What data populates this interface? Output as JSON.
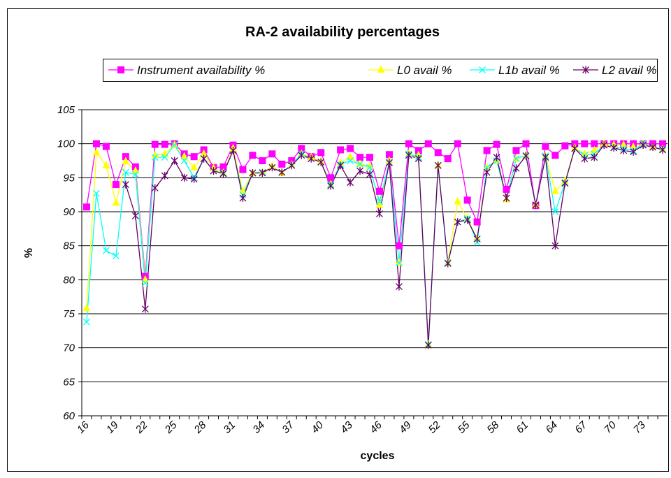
{
  "chart_data": {
    "type": "line",
    "title": "RA-2 availability percentages",
    "x_label": "cycles",
    "y_label": "%",
    "categories": [
      "16",
      null,
      null,
      "19",
      null,
      null,
      "22",
      null,
      null,
      "25",
      null,
      null,
      "28",
      null,
      null,
      "31",
      null,
      null,
      "34",
      null,
      null,
      "37",
      null,
      null,
      "40",
      null,
      null,
      "43",
      null,
      null,
      "46",
      null,
      null,
      "49",
      null,
      null,
      "52",
      null,
      null,
      "55",
      null,
      null,
      "58",
      null,
      null,
      "61",
      null,
      null,
      "64",
      null,
      null,
      "67",
      null,
      null,
      "70",
      null,
      null,
      "73",
      null,
      null
    ],
    "ylim": [
      60,
      105
    ],
    "yticks": [
      60,
      65,
      70,
      75,
      80,
      85,
      90,
      95,
      100,
      105
    ],
    "grid": true,
    "series": [
      {
        "name": "Instrument availability %",
        "color": "#ff00ff",
        "marker": "square",
        "values": [
          90.7,
          100,
          99.6,
          94,
          98.1,
          96.6,
          80.5,
          99.9,
          99.9,
          100,
          98.5,
          98.1,
          99.1,
          96.5,
          96.6,
          99.8,
          96.2,
          98.3,
          97.5,
          98.5,
          97,
          97.5,
          99.3,
          98.1,
          98.7,
          95,
          99.1,
          99.3,
          98,
          98,
          93,
          98.4,
          85,
          100,
          99,
          100,
          98.7,
          97.8,
          100,
          91.7,
          88.5,
          99,
          99.9,
          93.3,
          99,
          100,
          90.9,
          99.6,
          98.3,
          99.7,
          100,
          100,
          100,
          100,
          100,
          100,
          100,
          100,
          100,
          100
        ]
      },
      {
        "name": "L0 avail %",
        "color": "#ffff00",
        "marker": "triangle",
        "values": [
          75.8,
          98.7,
          96.8,
          91.3,
          97.4,
          96,
          80,
          98.3,
          98.5,
          99.8,
          98.1,
          96.5,
          98.5,
          96.4,
          95.7,
          99.3,
          93,
          95.7,
          95.8,
          96.7,
          95.7,
          96.9,
          98.5,
          98,
          97.4,
          94,
          97.2,
          98,
          97,
          96.7,
          91,
          97.5,
          82.5,
          98.5,
          98.3,
          70.5,
          96.8,
          82.5,
          91.5,
          89,
          86,
          96.5,
          97.5,
          91.8,
          97.8,
          98.3,
          91,
          98.2,
          93,
          94.5,
          99.4,
          98.5,
          99,
          100,
          99.8,
          99.8,
          99.5,
          100,
          99.5,
          99.2
        ]
      },
      {
        "name": "L1b avail %",
        "color": "#00ffff",
        "marker": "x",
        "values": [
          73.8,
          92.7,
          84.3,
          83.5,
          95.8,
          95.5,
          79.5,
          98,
          98,
          99.8,
          97.5,
          95,
          97.8,
          96,
          95.7,
          99,
          92.5,
          95.7,
          95.8,
          96.5,
          95.8,
          96.9,
          98.5,
          97.8,
          97.3,
          94,
          97,
          97.5,
          97,
          96.5,
          91.5,
          97.3,
          82.5,
          98.5,
          98,
          70.5,
          96.8,
          82.5,
          88.5,
          89,
          85.5,
          96.5,
          97.5,
          92,
          97.8,
          98.3,
          91,
          98.2,
          90,
          94.3,
          99.3,
          98.3,
          98.5,
          99.8,
          99.5,
          99.3,
          99,
          100,
          99.5,
          99.2
        ]
      },
      {
        "name": "L2 avail %",
        "color": "#660066",
        "marker": "star",
        "values": [
          null,
          null,
          null,
          null,
          94,
          89.4,
          75.7,
          93.5,
          95.3,
          97.5,
          95,
          94.8,
          97.8,
          96,
          95.6,
          99,
          92,
          95.7,
          95.7,
          96.5,
          95.8,
          96.8,
          98.3,
          97.8,
          97.3,
          93.8,
          96.8,
          94.3,
          96,
          95.5,
          89.7,
          97.2,
          79,
          98.3,
          97.8,
          70.4,
          96.8,
          82.4,
          88.5,
          88.8,
          86,
          95.8,
          98,
          92,
          96.4,
          98.2,
          91,
          98,
          85,
          94.2,
          99.3,
          97.8,
          98,
          99.8,
          99.4,
          99,
          98.8,
          99.8,
          99.5,
          99.1
        ]
      }
    ]
  }
}
